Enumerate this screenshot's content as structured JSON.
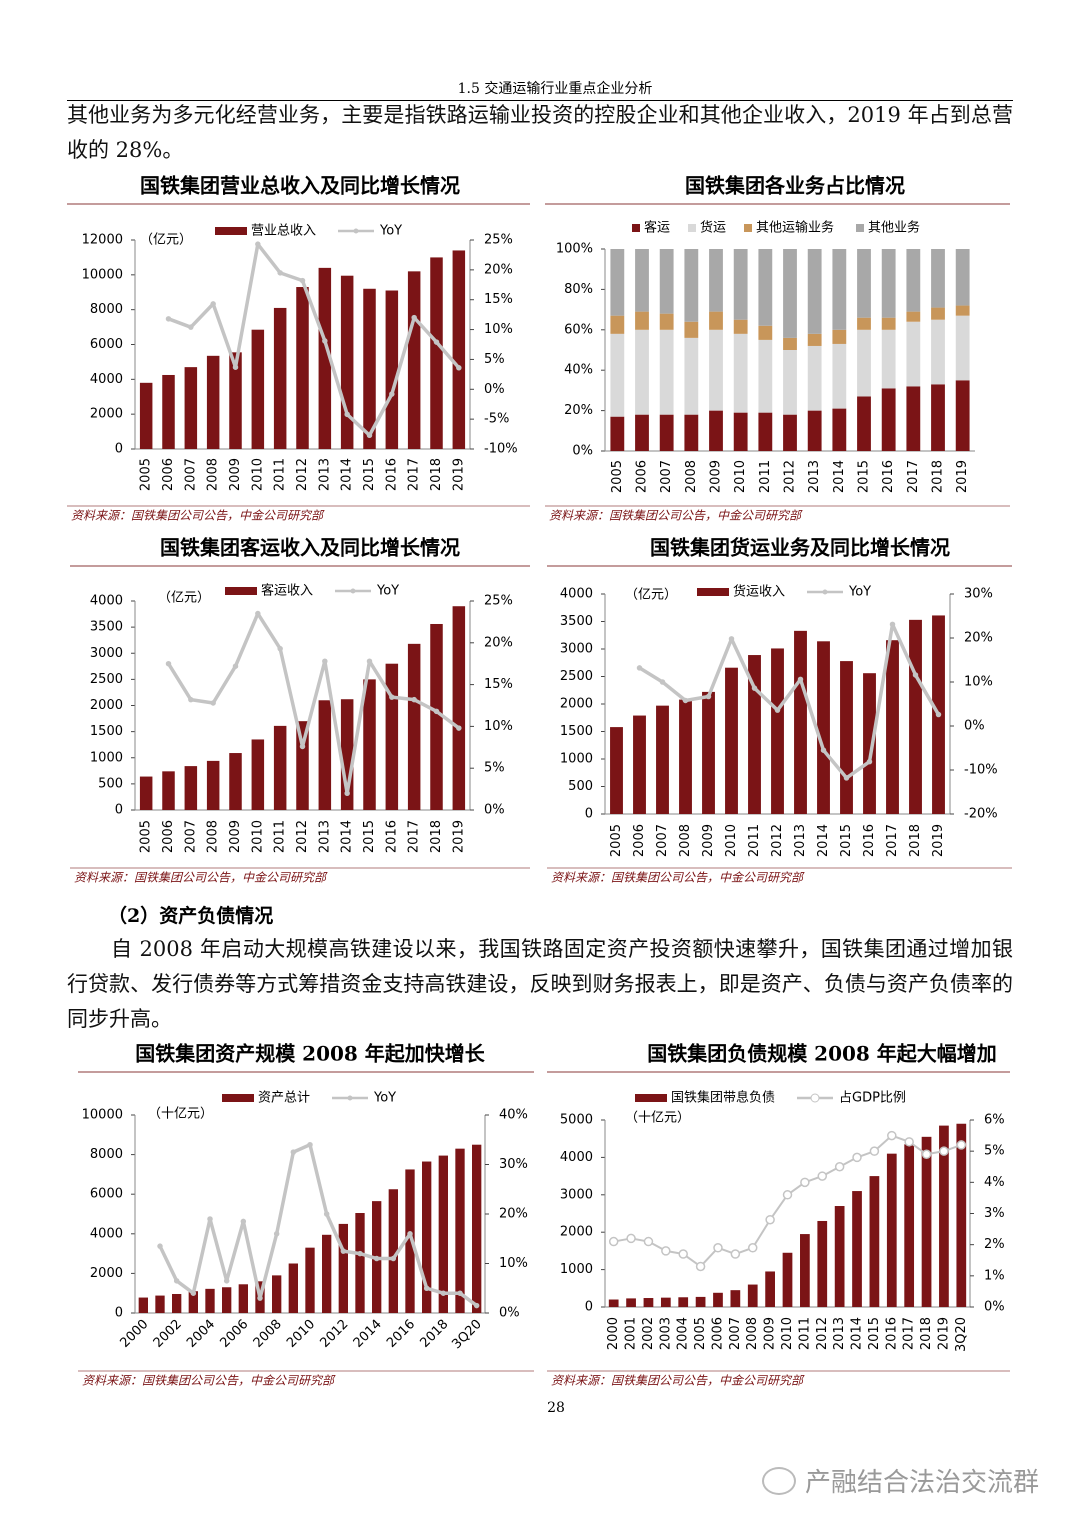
{
  "header": "1.5 交通运输行业重点企业分析",
  "paragraphs": [
    "其他业务为多元化经营业务，主要是指铁路运输业投资的控股企业和其他企业收入，2019 年占到总营收的 28%。",
    "自 2008 年启动大规模高铁建设以来，我国铁路固定资产投资额快速攀升，国铁集团通过增加银行贷款、发行债券等方式筹措资金支持高铁建设，反映到财务报表上，即是资产、负债与资产负债率的同步升高。"
  ],
  "section_heading": "（2）资产负债情况",
  "page_number": "28",
  "watermark": "产融结合法治交流群",
  "chart_data": [
    {
      "type": "combo",
      "title": "国铁集团营业总收入及同比增长情况",
      "unit": "（亿元）",
      "source": "资料来源：国铁集团公司公告，中金公司研究部",
      "categories": [
        "2005",
        "2006",
        "2007",
        "2008",
        "2009",
        "2010",
        "2011",
        "2012",
        "2013",
        "2014",
        "2015",
        "2016",
        "2017",
        "2018",
        "2019"
      ],
      "series": [
        {
          "name": "营业总收入",
          "color": "#7b1416",
          "values": [
            3800,
            4250,
            4700,
            5350,
            5550,
            6850,
            8100,
            9300,
            10400,
            9950,
            9200,
            9100,
            10200,
            11000,
            11400
          ]
        },
        {
          "name": "YoY",
          "color": "#c4c4c4",
          "axis": "y2",
          "marker": "dot",
          "values": [
            null,
            11.8,
            10.4,
            14.3,
            3.7,
            24.3,
            19.5,
            18.2,
            8.1,
            -4.2,
            -7.7,
            -0.8,
            12.0,
            7.9,
            3.6
          ]
        }
      ],
      "ylim": [
        0,
        12000
      ],
      "yticks": [
        0,
        2000,
        4000,
        6000,
        8000,
        10000,
        12000
      ],
      "y2lim": [
        -10,
        25
      ],
      "y2ticks": [
        {
          "value": -10,
          "label": "-10%"
        },
        {
          "value": -5,
          "label": "-5%"
        },
        {
          "value": 0,
          "label": "0%"
        },
        {
          "value": 5,
          "label": "5%"
        },
        {
          "value": 10,
          "label": "10%"
        },
        {
          "value": 15,
          "label": "15%"
        },
        {
          "value": 20,
          "label": "20%"
        },
        {
          "value": 25,
          "label": "25%"
        }
      ]
    },
    {
      "type": "stacked",
      "title": "国铁集团各业务占比情况",
      "source": "资料来源：国铁集团公司公告，中金公司研究部",
      "categories": [
        "2005",
        "2006",
        "2007",
        "2008",
        "2009",
        "2010",
        "2011",
        "2012",
        "2013",
        "2014",
        "2015",
        "2016",
        "2017",
        "2018",
        "2019"
      ],
      "series": [
        {
          "name": "客运",
          "color": "#7b1416",
          "values": [
            17,
            18,
            18,
            18,
            20,
            19,
            19,
            18,
            20,
            21,
            27,
            31,
            32,
            33,
            35
          ]
        },
        {
          "name": "货运",
          "color": "#d9d9d9",
          "values": [
            41,
            42,
            42,
            38,
            40,
            39,
            36,
            32,
            32,
            32,
            33,
            29,
            32,
            32,
            32
          ]
        },
        {
          "name": "其他运输业务",
          "color": "#c8965a",
          "values": [
            9,
            9,
            8,
            8,
            9,
            7,
            7,
            6,
            6,
            7,
            6,
            6,
            5,
            6,
            5
          ]
        },
        {
          "name": "其他业务",
          "color": "#a8a8a8",
          "values": [
            33,
            31,
            32,
            36,
            31,
            35,
            38,
            44,
            42,
            40,
            34,
            34,
            31,
            29,
            28
          ]
        }
      ],
      "ylim": [
        0,
        100
      ],
      "yticks": [
        {
          "value": 0,
          "label": "0%"
        },
        {
          "value": 20,
          "label": "20%"
        },
        {
          "value": 40,
          "label": "40%"
        },
        {
          "value": 60,
          "label": "60%"
        },
        {
          "value": 80,
          "label": "80%"
        },
        {
          "value": 100,
          "label": "100%"
        }
      ]
    },
    {
      "type": "combo",
      "title": "国铁集团客运收入及同比增长情况",
      "unit": "（亿元）",
      "source": "资料来源：国铁集团公司公告，中金公司研究部",
      "categories": [
        "2005",
        "2006",
        "2007",
        "2008",
        "2009",
        "2010",
        "2011",
        "2012",
        "2013",
        "2014",
        "2015",
        "2016",
        "2017",
        "2018",
        "2019"
      ],
      "series": [
        {
          "name": "客运收入",
          "color": "#7b1416",
          "values": [
            640,
            740,
            840,
            940,
            1090,
            1350,
            1610,
            1700,
            2100,
            2120,
            2500,
            2800,
            3180,
            3560,
            3900
          ]
        },
        {
          "name": "YoY",
          "color": "#c4c4c4",
          "axis": "y2",
          "marker": "dot",
          "values": [
            null,
            17.5,
            13.2,
            12.8,
            17.2,
            23.5,
            19.3,
            7.6,
            17.8,
            2.0,
            17.8,
            13.5,
            13.2,
            11.8,
            9.8
          ]
        }
      ],
      "ylim": [
        0,
        4000
      ],
      "yticks": [
        0,
        500,
        1000,
        1500,
        2000,
        2500,
        3000,
        3500,
        4000
      ],
      "y2lim": [
        0,
        25
      ],
      "y2ticks": [
        {
          "value": 0,
          "label": "0%"
        },
        {
          "value": 5,
          "label": "5%"
        },
        {
          "value": 10,
          "label": "10%"
        },
        {
          "value": 15,
          "label": "15%"
        },
        {
          "value": 20,
          "label": "20%"
        },
        {
          "value": 25,
          "label": "25%"
        }
      ]
    },
    {
      "type": "combo",
      "title": "国铁集团货运业务及同比增长情况",
      "unit": "（亿元）",
      "source": "资料来源：国铁集团公司公告，中金公司研究部",
      "categories": [
        "2005",
        "2006",
        "2007",
        "2008",
        "2009",
        "2010",
        "2011",
        "2012",
        "2013",
        "2014",
        "2015",
        "2016",
        "2017",
        "2018",
        "2019"
      ],
      "series": [
        {
          "name": "货运收入",
          "color": "#7b1416",
          "values": [
            1580,
            1790,
            1970,
            2080,
            2220,
            2660,
            2890,
            3010,
            3330,
            3140,
            2780,
            2560,
            3160,
            3530,
            3610
          ]
        },
        {
          "name": "YoY",
          "color": "#c4c4c4",
          "axis": "y2",
          "marker": "dot",
          "values": [
            null,
            13.2,
            10.0,
            5.8,
            6.7,
            19.8,
            8.6,
            3.6,
            10.6,
            -5.5,
            -11.8,
            -8.1,
            23.1,
            11.6,
            2.6
          ]
        }
      ],
      "ylim": [
        0,
        4000
      ],
      "yticks": [
        0,
        500,
        1000,
        1500,
        2000,
        2500,
        3000,
        3500,
        4000
      ],
      "y2lim": [
        -20,
        30
      ],
      "y2ticks": [
        {
          "value": -20,
          "label": "-20%"
        },
        {
          "value": -10,
          "label": "-10%"
        },
        {
          "value": 0,
          "label": "0%"
        },
        {
          "value": 10,
          "label": "10%"
        },
        {
          "value": 20,
          "label": "20%"
        },
        {
          "value": 30,
          "label": "30%"
        }
      ]
    },
    {
      "type": "combo",
      "title": "国铁集团资产规模 2008 年起加快增长",
      "unit": "（十亿元）",
      "source": "资料来源：国铁集团公司公告，中金公司研究部",
      "categories": [
        "2000",
        null,
        "2002",
        null,
        "2004",
        null,
        "2006",
        null,
        "2008",
        null,
        "2010",
        null,
        "2012",
        null,
        "2014",
        null,
        "2016",
        null,
        "2018",
        null,
        "3Q20"
      ],
      "series": [
        {
          "name": "资产总计",
          "color": "#7b1416",
          "values": [
            780,
            880,
            960,
            1100,
            1220,
            1300,
            1450,
            1600,
            1900,
            2500,
            3300,
            3950,
            4500,
            5050,
            5650,
            6250,
            7250,
            7650,
            7950,
            8300,
            8500
          ]
        },
        {
          "name": "YoY",
          "color": "#c4c4c4",
          "axis": "y2",
          "marker": "dot",
          "values": [
            null,
            13.5,
            6.5,
            4,
            19,
            6.5,
            18.5,
            3,
            16,
            32.5,
            34,
            20,
            12.5,
            12,
            11,
            11,
            16,
            5,
            4,
            4,
            1.5
          ]
        }
      ],
      "ylim": [
        0,
        10000
      ],
      "yticks": [
        0,
        2000,
        4000,
        6000,
        8000,
        10000
      ],
      "y2lim": [
        0,
        40
      ],
      "y2ticks": [
        {
          "value": 0,
          "label": "0%"
        },
        {
          "value": 10,
          "label": "10%"
        },
        {
          "value": 20,
          "label": "20%"
        },
        {
          "value": 30,
          "label": "30%"
        },
        {
          "value": 40,
          "label": "40%"
        }
      ]
    },
    {
      "type": "combo",
      "title": "国铁集团负债规模 2008 年起大幅增加",
      "unit": "（十亿元）",
      "source": "资料来源：国铁集团公司公告，中金公司研究部",
      "categories": [
        "2000",
        "2001",
        "2002",
        "2003",
        "2004",
        "2005",
        "2006",
        "2007",
        "2008",
        "2009",
        "2010",
        "2011",
        "2012",
        "2013",
        "2014",
        "2015",
        "2016",
        "2017",
        "2018",
        "2019",
        "3Q20"
      ],
      "series": [
        {
          "name": "国铁集团带息负债",
          "color": "#7b1416",
          "values": [
            200,
            230,
            240,
            250,
            260,
            270,
            380,
            450,
            600,
            950,
            1450,
            1950,
            2300,
            2700,
            3100,
            3500,
            4100,
            4350,
            4550,
            4850,
            4900
          ]
        },
        {
          "name": "占GDP比例",
          "color": "#c4c4c4",
          "axis": "y2",
          "marker": "open",
          "values": [
            2.1,
            2.2,
            2.1,
            1.8,
            1.7,
            1.3,
            1.9,
            1.7,
            1.9,
            2.8,
            3.6,
            4.0,
            4.2,
            4.5,
            4.8,
            5.0,
            5.5,
            5.3,
            4.9,
            5.0,
            5.2
          ]
        }
      ],
      "ylim": [
        0,
        5000
      ],
      "yticks": [
        0,
        1000,
        2000,
        3000,
        4000,
        5000
      ],
      "y2lim": [
        0,
        6
      ],
      "y2ticks": [
        {
          "value": 0,
          "label": "0%"
        },
        {
          "value": 1,
          "label": "1%"
        },
        {
          "value": 2,
          "label": "2%"
        },
        {
          "value": 3,
          "label": "3%"
        },
        {
          "value": 4,
          "label": "4%"
        },
        {
          "value": 5,
          "label": "5%"
        },
        {
          "value": 6,
          "label": "6%"
        }
      ]
    }
  ]
}
